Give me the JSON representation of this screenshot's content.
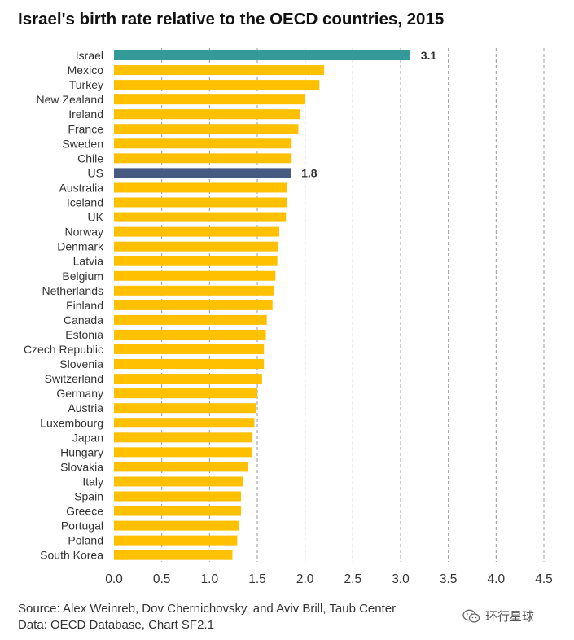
{
  "chart_data": {
    "type": "bar",
    "orientation": "horizontal",
    "title": "Israel's birth rate relative to the OECD countries, 2015",
    "categories": [
      "Israel",
      "Mexico",
      "Turkey",
      "New Zealand",
      "Ireland",
      "France",
      "Sweden",
      "Chile",
      "US",
      "Australia",
      "Iceland",
      "UK",
      "Norway",
      "Denmark",
      "Latvia",
      "Belgium",
      "Netherlands",
      "Finland",
      "Canada",
      "Estonia",
      "Czech Republic",
      "Slovenia",
      "Switzerland",
      "Germany",
      "Austria",
      "Luxembourg",
      "Japan",
      "Hungary",
      "Slovakia",
      "Italy",
      "Spain",
      "Greece",
      "Portugal",
      "Poland",
      "South Korea"
    ],
    "values": [
      3.1,
      2.2,
      2.15,
      2.0,
      1.95,
      1.93,
      1.86,
      1.86,
      1.85,
      1.81,
      1.81,
      1.8,
      1.73,
      1.72,
      1.71,
      1.69,
      1.67,
      1.66,
      1.6,
      1.59,
      1.57,
      1.57,
      1.55,
      1.5,
      1.49,
      1.47,
      1.45,
      1.44,
      1.4,
      1.35,
      1.33,
      1.33,
      1.31,
      1.29,
      1.24
    ],
    "highlight": {
      "Israel": "#339999",
      "US": "#465a82"
    },
    "default_color": "#ffc000",
    "data_labels": [
      {
        "category": "Israel",
        "text": "3.1"
      },
      {
        "category": "US",
        "text": "1.8"
      }
    ],
    "xlim": [
      0,
      4.5
    ],
    "xticks": [
      "0.0",
      "0.5",
      "1.0",
      "1.5",
      "2.0",
      "2.5",
      "3.0",
      "3.5",
      "4.0",
      "4.5"
    ],
    "grid": "vertical dashed",
    "xlabel": "",
    "ylabel": ""
  },
  "source": {
    "line1": "Source: Alex Weinreb, Dov Chernichovsky, and Aviv Brill, Taub Center",
    "line2": "Data: OECD Database, Chart SF2.1"
  },
  "watermark": {
    "text": "环行星球",
    "icon": "wechat-icon"
  }
}
